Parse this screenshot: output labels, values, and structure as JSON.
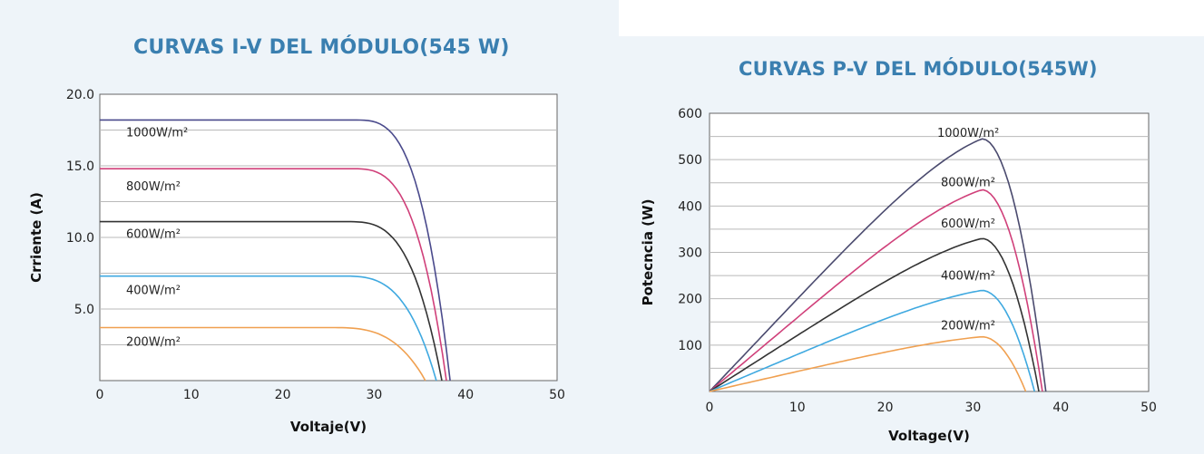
{
  "chart_data": [
    {
      "type": "line",
      "title": "CURVAS I-V DEL MÓDULO(545 W)",
      "xlabel": "Voltaje(V)",
      "ylabel": "Crriente (A)",
      "xlim": [
        0,
        50
      ],
      "ylim": [
        0,
        20
      ],
      "x_ticks": [
        "0",
        "10",
        "20",
        "30",
        "40",
        "50"
      ],
      "y_ticks": [
        "5.0",
        "10.0",
        "15.0",
        "20.0"
      ],
      "grid": true,
      "series": [
        {
          "name": "1000W/m²",
          "color": "#4a4a8c",
          "isc": 18.2,
          "voc": 38.3
        },
        {
          "name": "800W/m²",
          "color": "#d0407a",
          "isc": 14.8,
          "voc": 37.9
        },
        {
          "name": "600W/m²",
          "color": "#333333",
          "isc": 11.1,
          "voc": 37.4
        },
        {
          "name": "400W/m²",
          "color": "#3fa9e0",
          "isc": 7.3,
          "voc": 36.8
        },
        {
          "name": "200W/m²",
          "color": "#f0a050",
          "isc": 3.7,
          "voc": 35.6
        }
      ]
    },
    {
      "type": "line",
      "title": "CURVAS P-V DEL MÓDULO(545W)",
      "xlabel": "Voltage(V)",
      "ylabel": "Potecncia (W)",
      "xlim": [
        0,
        50
      ],
      "ylim": [
        0,
        600
      ],
      "x_ticks": [
        "0",
        "10",
        "20",
        "30",
        "40",
        "50"
      ],
      "y_ticks": [
        "100",
        "200",
        "300",
        "400",
        "500",
        "600"
      ],
      "grid": true,
      "series": [
        {
          "name": "1000W/m²",
          "color": "#4a4a6e",
          "pmax": 545,
          "vmp": 31.0,
          "voc": 38.3
        },
        {
          "name": "800W/m²",
          "color": "#d0407a",
          "pmax": 435,
          "vmp": 31.0,
          "voc": 37.9
        },
        {
          "name": "600W/m²",
          "color": "#333333",
          "pmax": 330,
          "vmp": 31.0,
          "voc": 37.5
        },
        {
          "name": "400W/m²",
          "color": "#3fa9e0",
          "pmax": 218,
          "vmp": 31.0,
          "voc": 37.0
        },
        {
          "name": "200W/m²",
          "color": "#f0a050",
          "pmax": 118,
          "vmp": 31.0,
          "voc": 36.0
        }
      ]
    }
  ]
}
